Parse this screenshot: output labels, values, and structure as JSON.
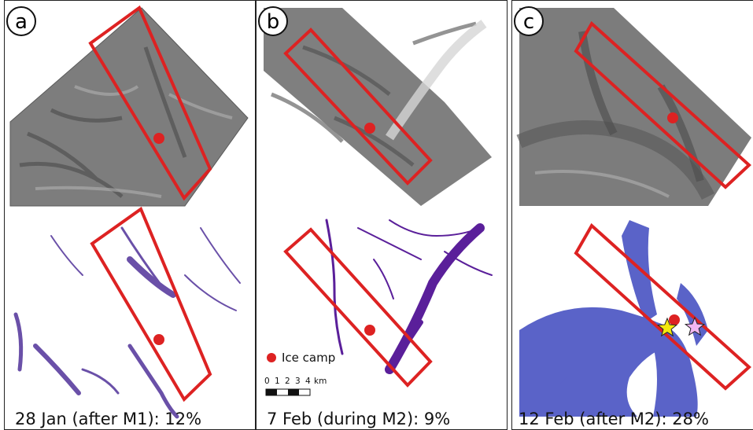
{
  "panels": [
    {
      "letter": "a",
      "caption": "28 Jan (after M1): 12%"
    },
    {
      "letter": "b",
      "caption": "7 Feb (during M2): 9%"
    },
    {
      "letter": "c",
      "caption": "12 Feb (after M2): 28%"
    }
  ],
  "legend": {
    "ice_camp_label": "Ice camp"
  },
  "scale_bar": {
    "ticks": [
      "0",
      "1",
      "2",
      "3",
      "4"
    ],
    "unit": "km"
  },
  "colors": {
    "box": "#dd2222",
    "ice_camp": "#dd2222",
    "lead_a": "#6a50a8",
    "lead_b": "#5a1f9a",
    "lead_c": "#5a63c8"
  }
}
